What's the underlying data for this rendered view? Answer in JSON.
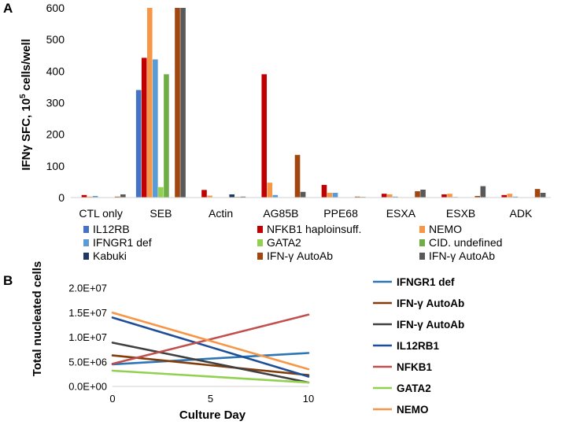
{
  "chart_data": [
    {
      "panel": "A",
      "type": "bar",
      "ylabel_main": "IFNγ SFC, 10",
      "ylabel_sup": "5",
      "ylabel_tail": " cells/well",
      "xlabel": "",
      "ylim": [
        0,
        600
      ],
      "yticks": [
        0,
        100,
        200,
        300,
        400,
        500,
        600
      ],
      "grid": false,
      "legend_position": "bottom",
      "categories": [
        "CTL only",
        "SEB",
        "Actin",
        "AG85B",
        "PPE68",
        "ESXA",
        "ESXB",
        "ADK"
      ],
      "series": [
        {
          "name": "IL12RB",
          "color": "#4472C4",
          "values": [
            0,
            340,
            0,
            0,
            0,
            0,
            0,
            0
          ]
        },
        {
          "name": "NFKB1 haploinsuff.",
          "color": "#C00000",
          "values": [
            8,
            442,
            24,
            390,
            40,
            12,
            10,
            8
          ]
        },
        {
          "name": "NEMO",
          "color": "#F79646",
          "values": [
            3,
            600,
            6,
            47,
            15,
            10,
            12,
            12
          ]
        },
        {
          "name": "IFNGR1 def",
          "color": "#5B9BD5",
          "values": [
            5,
            437,
            0,
            8,
            15,
            3,
            2,
            3
          ]
        },
        {
          "name": "GATA2",
          "color": "#92D050",
          "values": [
            0,
            33,
            0,
            0,
            0,
            0,
            0,
            0
          ]
        },
        {
          "name": "CID. undefined",
          "color": "#70AD47",
          "values": [
            0,
            390,
            0,
            0,
            0,
            0,
            0,
            0
          ]
        },
        {
          "name": "Kabuki",
          "color": "#1F3864",
          "values": [
            0,
            0,
            10,
            0,
            0,
            0,
            0,
            0
          ]
        },
        {
          "name": "IFN-γ AutoAb",
          "color": "#A0460E",
          "values": [
            3,
            600,
            2,
            135,
            3,
            20,
            5,
            27
          ]
        },
        {
          "name": "IFN-γ AutoAb",
          "color": "#595959",
          "values": [
            10,
            600,
            3,
            18,
            2,
            25,
            36,
            15
          ]
        }
      ]
    },
    {
      "panel": "B",
      "type": "line",
      "ylabel": "Total nucleated cells",
      "xlabel": "Culture Day",
      "xlim": [
        0,
        10
      ],
      "ylim": [
        0,
        20000000
      ],
      "xticks": [
        "0",
        "5",
        "10"
      ],
      "yticks": [
        "0.0E+00",
        "5.0E+06",
        "1.0E+07",
        "1.5E+07",
        "2.0E+07"
      ],
      "grid": false,
      "legend_position": "right",
      "series": [
        {
          "name": "IFNGR1 def",
          "color": "#2E75B6",
          "x": [
            0,
            10
          ],
          "y": [
            4500000,
            6800000
          ]
        },
        {
          "name": "IFN-γ AutoAb",
          "color": "#843C0C",
          "x": [
            0,
            10
          ],
          "y": [
            6300000,
            2300000
          ]
        },
        {
          "name": "IFN-γ AutoAb",
          "color": "#404040",
          "x": [
            0,
            10
          ],
          "y": [
            8900000,
            800000
          ]
        },
        {
          "name": "IL12RB1",
          "color": "#1F4E99",
          "x": [
            0,
            10
          ],
          "y": [
            14000000,
            2000000
          ]
        },
        {
          "name": "NFKB1",
          "color": "#C0504D",
          "x": [
            0,
            10
          ],
          "y": [
            4600000,
            14600000
          ]
        },
        {
          "name": "GATA2",
          "color": "#92D050",
          "x": [
            0,
            10
          ],
          "y": [
            3200000,
            800000
          ]
        },
        {
          "name": "NEMO",
          "color": "#F79646",
          "x": [
            0,
            10
          ],
          "y": [
            15000000,
            3500000
          ]
        }
      ]
    }
  ]
}
